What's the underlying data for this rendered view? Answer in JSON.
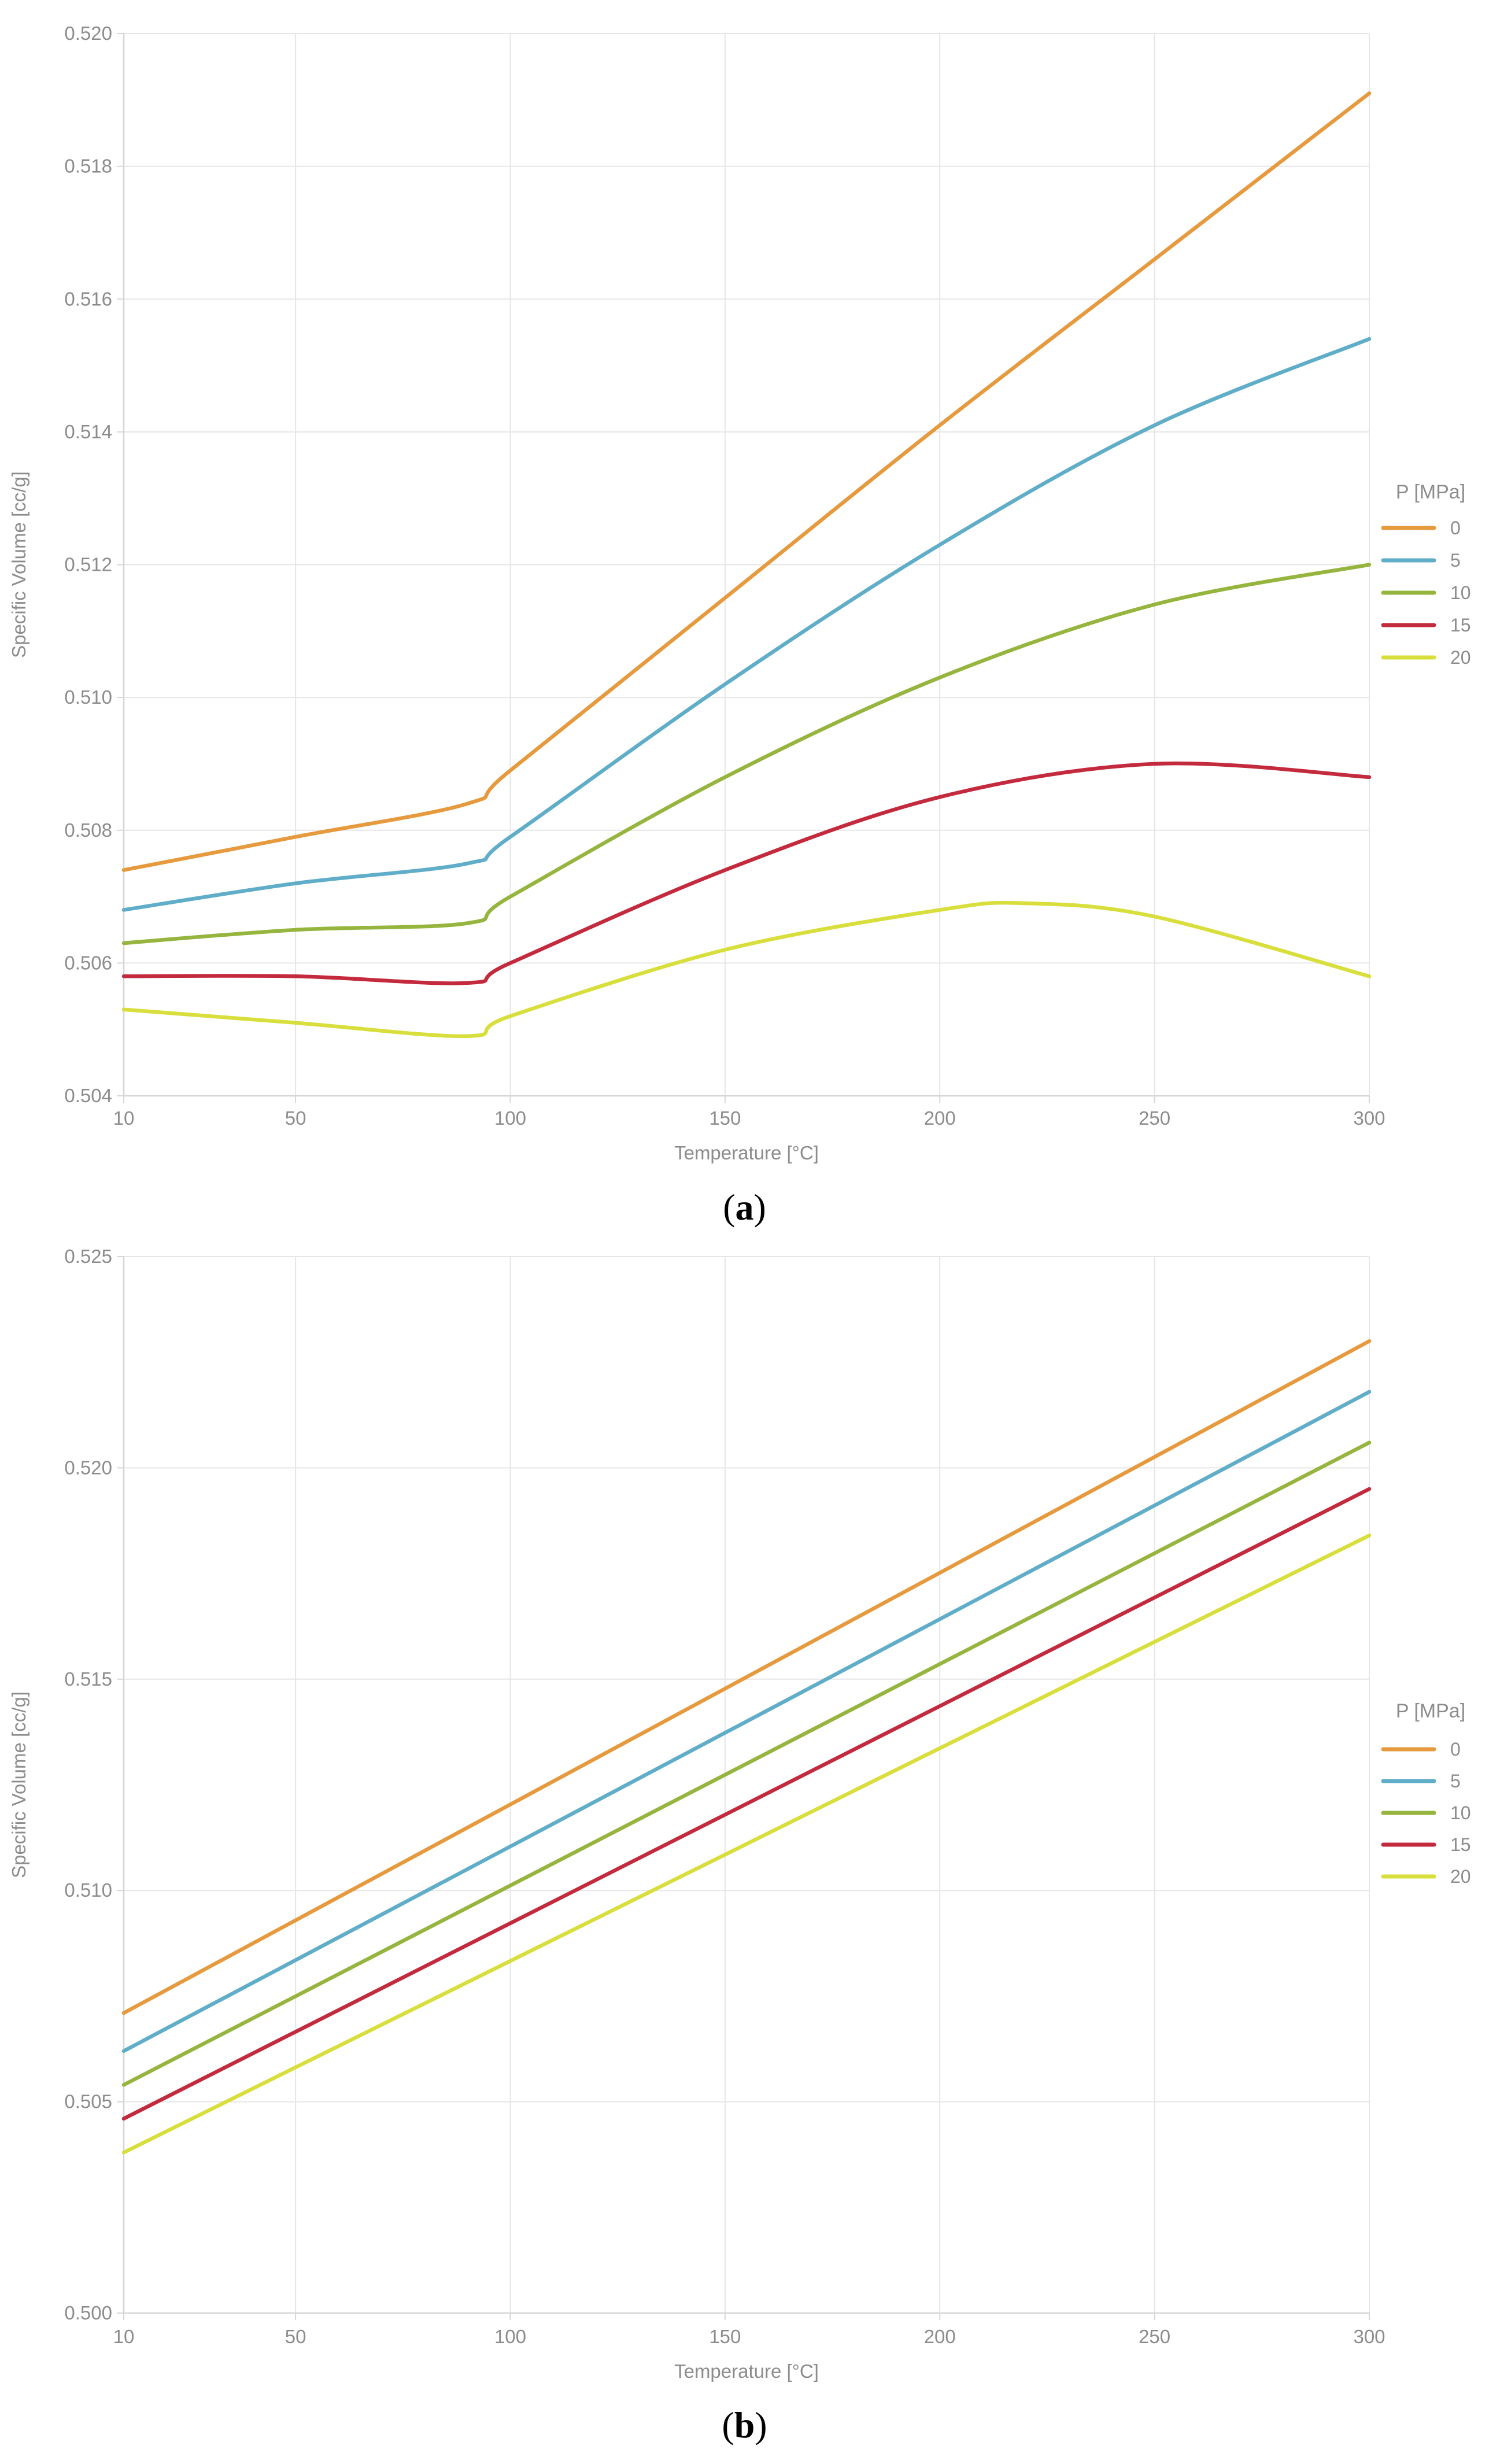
{
  "figure": {
    "panels": [
      {
        "caption_open": "(",
        "caption_letter": "a",
        "caption_close": ")"
      },
      {
        "caption_open": "(",
        "caption_letter": "b",
        "caption_close": ")"
      }
    ]
  },
  "style_colors": {
    "grid": "#E6E6E6",
    "axis": "#D6D6D6",
    "tick_text": "#8C8C8C",
    "label_text": "#8C8C8C",
    "legend_text": "#8C8C8C"
  },
  "chart_data": [
    {
      "type": "line",
      "panel": "a",
      "title": "",
      "xlabel": "Temperature [°C]",
      "ylabel": "Specific Volume [cc/g]",
      "xlim": [
        10,
        300
      ],
      "ylim": [
        0.504,
        0.52
      ],
      "xticks": [
        "10",
        "50",
        "100",
        "150",
        "200",
        "250",
        "300"
      ],
      "yticks": [
        "0.520",
        "0.518",
        "0.516",
        "0.514",
        "0.512",
        "0.510",
        "0.508",
        "0.506",
        "0.504"
      ],
      "grid": true,
      "legend_title": "P [MPa]",
      "legend_position": "right",
      "series": [
        {
          "name": "0",
          "color": "#E69A3D",
          "points": [
            [
              10,
              0.5074
            ],
            [
              50,
              0.5079
            ],
            [
              90,
              0.5084
            ],
            [
              100,
              0.5089
            ],
            [
              150,
              0.5115
            ],
            [
              200,
              0.5141
            ],
            [
              250,
              0.5166
            ],
            [
              300,
              0.5191
            ]
          ]
        },
        {
          "name": "5",
          "color": "#5FADC8",
          "points": [
            [
              10,
              0.5068
            ],
            [
              50,
              0.5072
            ],
            [
              90,
              0.5075
            ],
            [
              100,
              0.5079
            ],
            [
              150,
              0.5102
            ],
            [
              200,
              0.5123
            ],
            [
              250,
              0.5141
            ],
            [
              300,
              0.5154
            ]
          ]
        },
        {
          "name": "10",
          "color": "#96B53E",
          "points": [
            [
              10,
              0.5063
            ],
            [
              50,
              0.5065
            ],
            [
              90,
              0.5066
            ],
            [
              100,
              0.507
            ],
            [
              150,
              0.5088
            ],
            [
              200,
              0.5103
            ],
            [
              250,
              0.5114
            ],
            [
              300,
              0.512
            ]
          ]
        },
        {
          "name": "15",
          "color": "#C42A3D",
          "points": [
            [
              10,
              0.5058
            ],
            [
              50,
              0.5058
            ],
            [
              90,
              0.5057
            ],
            [
              100,
              0.506
            ],
            [
              150,
              0.5074
            ],
            [
              200,
              0.5085
            ],
            [
              250,
              0.509
            ],
            [
              300,
              0.5088
            ]
          ]
        },
        {
          "name": "20",
          "color": "#D8DE3B",
          "points": [
            [
              10,
              0.5053
            ],
            [
              50,
              0.5051
            ],
            [
              90,
              0.5049
            ],
            [
              100,
              0.5052
            ],
            [
              150,
              0.5062
            ],
            [
              200,
              0.5068
            ],
            [
              220,
              0.5069
            ],
            [
              250,
              0.5067
            ],
            [
              300,
              0.5058
            ]
          ]
        }
      ]
    },
    {
      "type": "line",
      "panel": "b",
      "title": "",
      "xlabel": "Temperature [°C]",
      "ylabel": "Specific Volume [cc/g]",
      "xlim": [
        10,
        300
      ],
      "ylim": [
        0.5,
        0.525
      ],
      "xticks": [
        "10",
        "50",
        "100",
        "150",
        "200",
        "250",
        "300"
      ],
      "yticks": [
        "0.525",
        "0.520",
        "0.515",
        "0.510",
        "0.505",
        "0.500"
      ],
      "grid": true,
      "legend_title": "P [MPa]",
      "legend_position": "right",
      "series": [
        {
          "name": "0",
          "color": "#E69A3D",
          "points": [
            [
              10,
              0.5071
            ],
            [
              300,
              0.523
            ]
          ]
        },
        {
          "name": "5",
          "color": "#5FADC8",
          "points": [
            [
              10,
              0.5062
            ],
            [
              300,
              0.5218
            ]
          ]
        },
        {
          "name": "10",
          "color": "#96B53E",
          "points": [
            [
              10,
              0.5054
            ],
            [
              300,
              0.5206
            ]
          ]
        },
        {
          "name": "15",
          "color": "#C42A3D",
          "points": [
            [
              10,
              0.5046
            ],
            [
              300,
              0.5195
            ]
          ]
        },
        {
          "name": "20",
          "color": "#D8DE3B",
          "points": [
            [
              10,
              0.5038
            ],
            [
              300,
              0.5184
            ]
          ]
        }
      ]
    }
  ]
}
